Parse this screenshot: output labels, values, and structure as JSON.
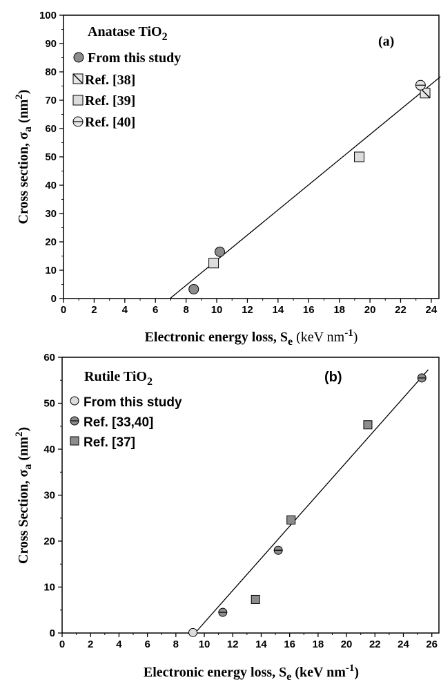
{
  "chart_data": [
    {
      "type": "scatter",
      "panel_label": "(a)",
      "title_text": "Anatase TiO",
      "title_sub": "2",
      "xlabel_main": "Electronic energy loss, S",
      "xlabel_sub": "e",
      "xlabel_unit": " (keV nm",
      "xlabel_sup": "-1",
      "xlabel_close": ")",
      "ylabel_main": "Cross section, σ",
      "ylabel_sub": "a",
      "ylabel_unit": " (nm",
      "ylabel_sup": "2",
      "ylabel_close": ")",
      "xlim": [
        0,
        24.5
      ],
      "ylim": [
        0,
        100
      ],
      "xticks": [
        0,
        2,
        4,
        6,
        8,
        10,
        12,
        14,
        16,
        18,
        20,
        22,
        24
      ],
      "yticks": [
        0,
        10,
        20,
        30,
        40,
        50,
        60,
        70,
        80,
        90,
        100
      ],
      "grid": false,
      "legend_position": "top-left",
      "series": [
        {
          "name": "From this study",
          "marker": "circle",
          "fill": "#8c8c8c",
          "points": [
            [
              8.5,
              3.3
            ],
            [
              10.2,
              16.5
            ]
          ]
        },
        {
          "name": "Ref. [38]",
          "marker": "square-diag",
          "fill": "#e6e6e6",
          "points": [
            [
              23.6,
              72.5
            ]
          ]
        },
        {
          "name": "Ref. [39]",
          "marker": "square",
          "fill": "#dcdcdc",
          "points": [
            [
              9.8,
              12.5
            ],
            [
              19.3,
              50.0
            ]
          ]
        },
        {
          "name": "Ref. [40]",
          "marker": "circle-hline",
          "fill": "#e6e6e6",
          "points": [
            [
              23.3,
              75.3
            ]
          ]
        }
      ],
      "fit_line": {
        "x": [
          6.95,
          24.6
        ],
        "y": [
          0,
          78.3
        ]
      }
    },
    {
      "type": "scatter",
      "panel_label": "(b)",
      "title_text": "Rutile TiO",
      "title_sub": "2",
      "xlabel_main": "Electronic energy loss, S",
      "xlabel_sub": "e",
      "xlabel_unit": " (keV nm",
      "xlabel_sup": "-1",
      "xlabel_close": ")",
      "ylabel_main": "Cross Section, σ",
      "ylabel_sub": "a",
      "ylabel_unit": " (nm",
      "ylabel_sup": "2",
      "ylabel_close": ")",
      "xlim": [
        0,
        26.5
      ],
      "ylim": [
        0,
        60
      ],
      "xticks": [
        0,
        2,
        4,
        6,
        8,
        10,
        12,
        14,
        16,
        18,
        20,
        22,
        24,
        26
      ],
      "yticks": [
        0,
        10,
        20,
        30,
        40,
        50,
        60
      ],
      "grid": false,
      "legend_position": "top-left",
      "series": [
        {
          "name": "From this study",
          "marker": "circle",
          "fill": "#dcdcdc",
          "points": [
            [
              9.2,
              0.1
            ]
          ]
        },
        {
          "name": "Ref. [33,40]",
          "marker": "circle-hline",
          "fill": "#8c8c8c",
          "points": [
            [
              11.3,
              4.5
            ],
            [
              15.2,
              18.0
            ],
            [
              25.3,
              55.5
            ]
          ]
        },
        {
          "name": "Ref. [37]",
          "marker": "square",
          "fill": "#8c8c8c",
          "points": [
            [
              13.6,
              7.3
            ],
            [
              16.1,
              24.6
            ],
            [
              21.5,
              45.3
            ]
          ]
        }
      ],
      "fit_line": {
        "x": [
          9.35,
          25.75
        ],
        "y": [
          0,
          57.3
        ]
      }
    }
  ]
}
